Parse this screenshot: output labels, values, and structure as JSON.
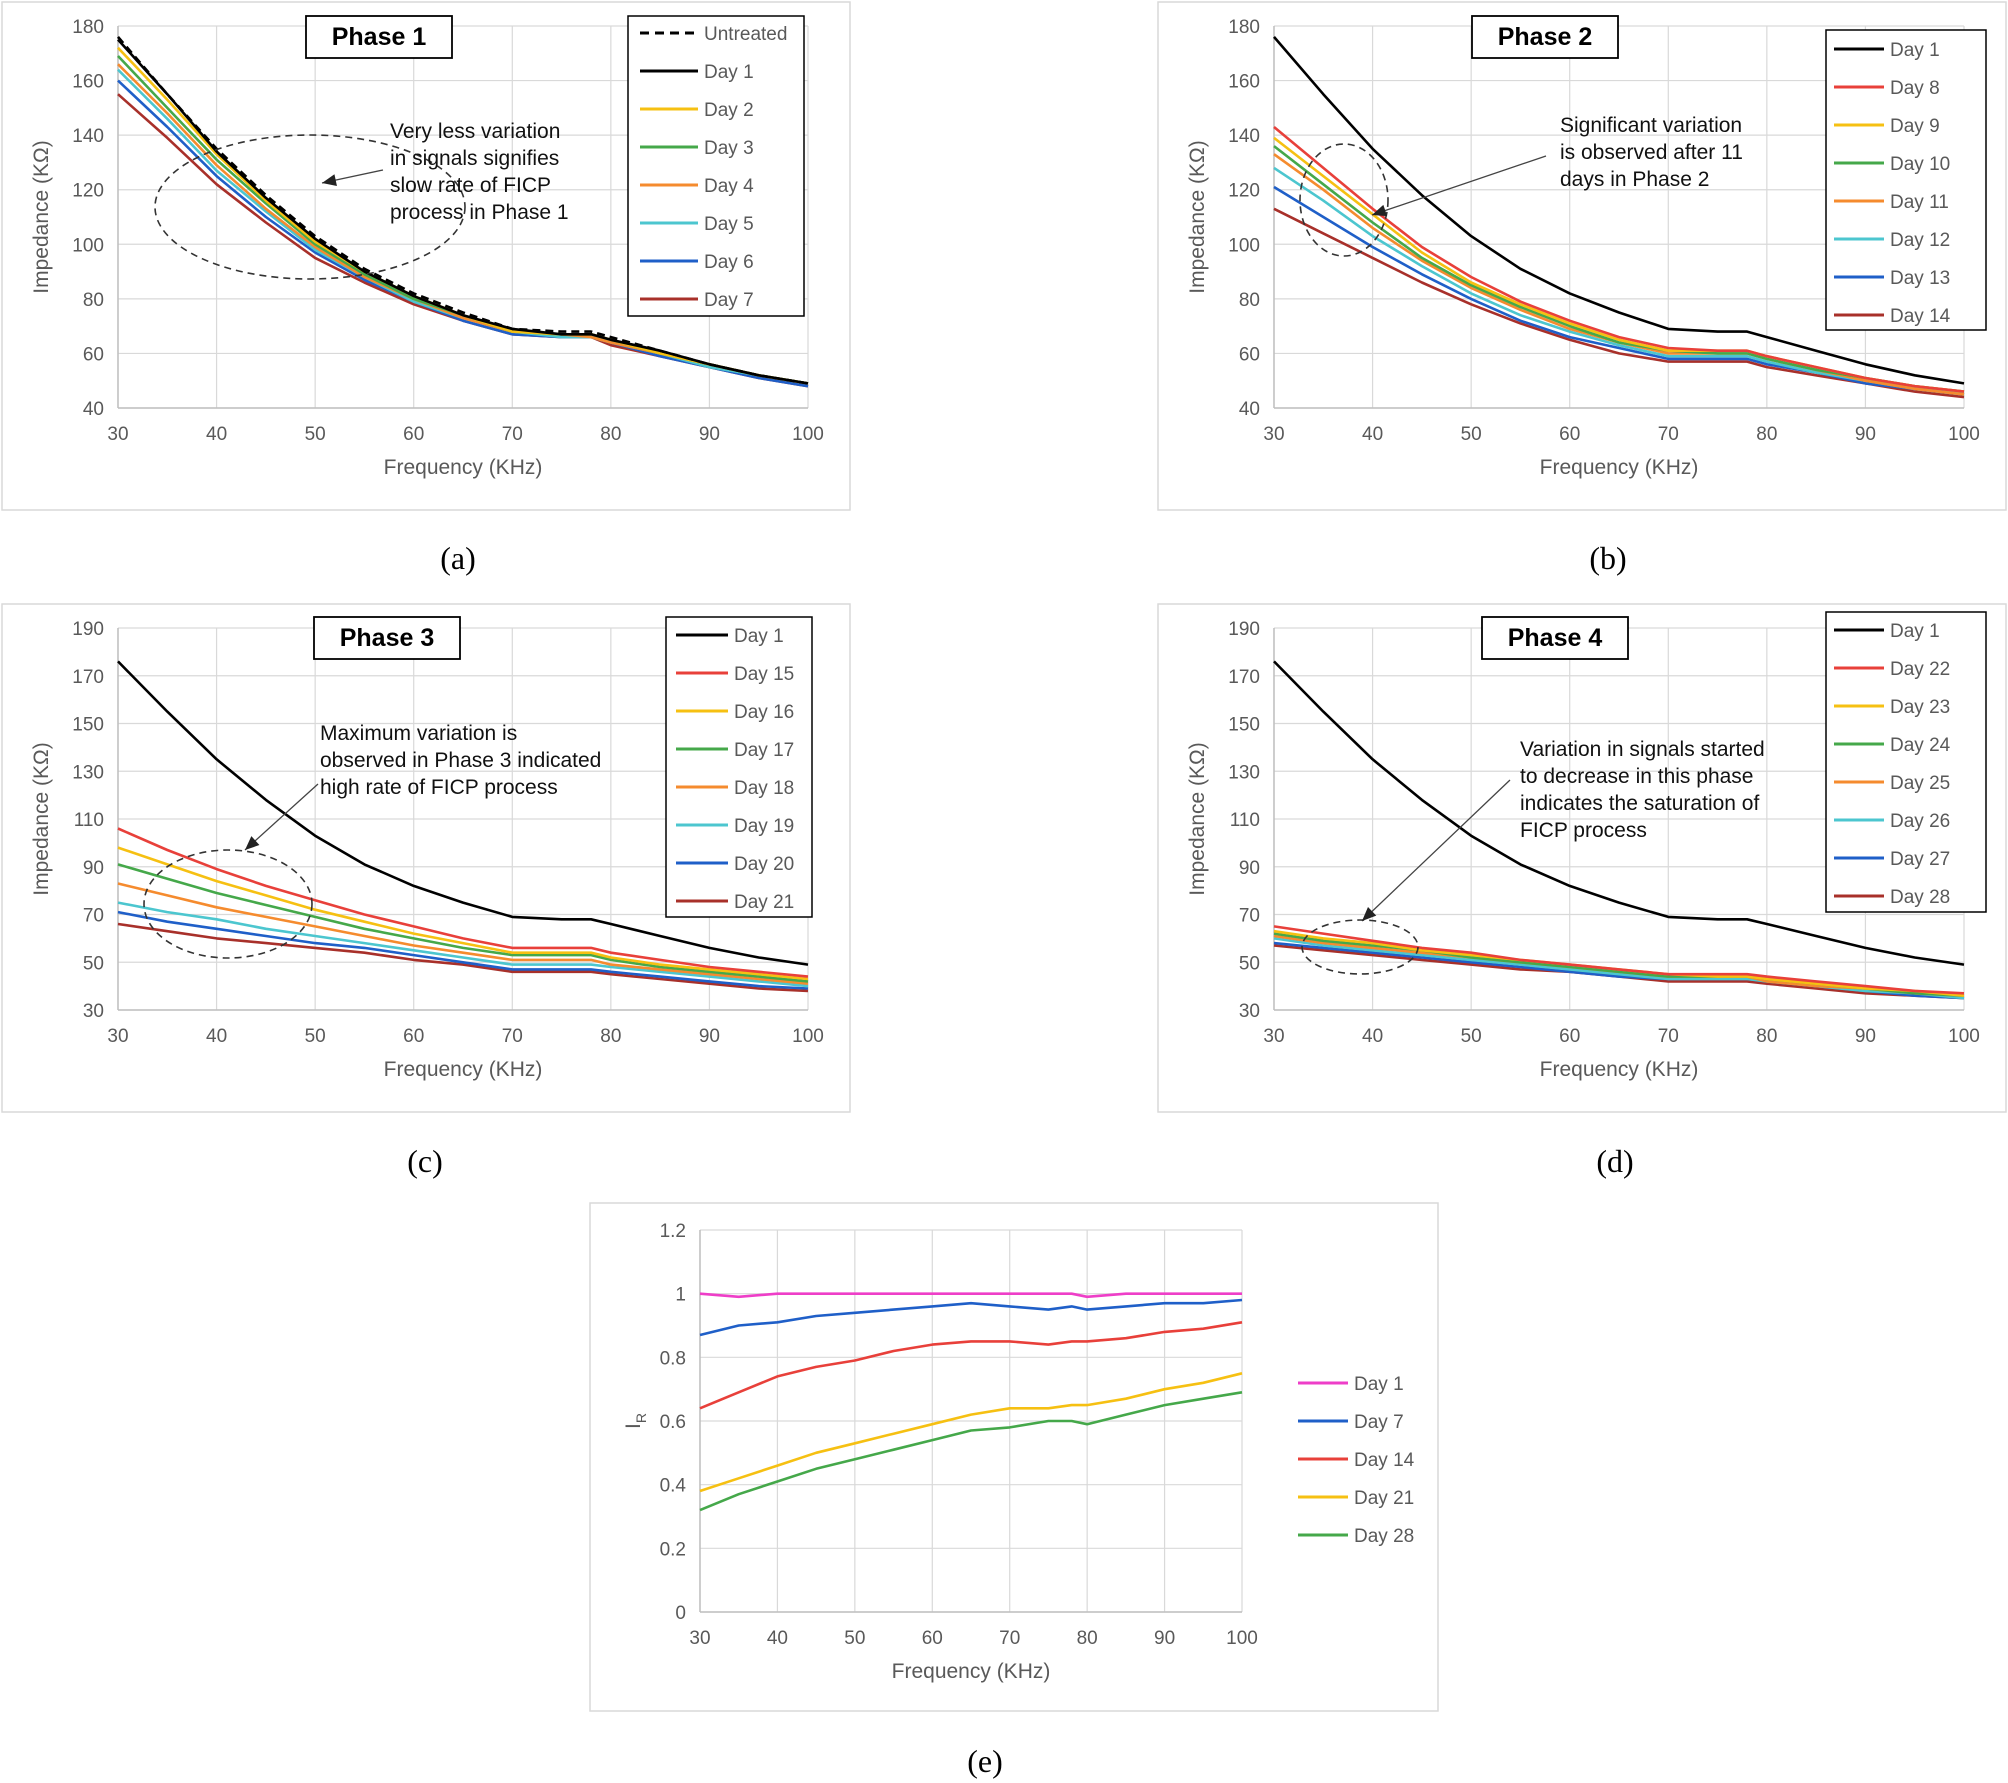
{
  "x_axis_label": "Frequency (KHz)",
  "impedance_axis_label": "Impedance (KΩ)",
  "ir_axis_label": "I",
  "ir_axis_subscript": "R",
  "captions": [
    "(a)",
    "(b)",
    "(c)",
    "(d)",
    "(e)"
  ],
  "colors": {
    "untreated": "#000000",
    "black": "#000000",
    "red": "#e8403a",
    "yellow": "#f6c012",
    "green": "#45a84a",
    "orange": "#f58b2e",
    "cyan": "#4cc6cf",
    "blue": "#1f5fc8",
    "darkred": "#a8302a",
    "magenta": "#ee3ec8",
    "gridline": "#d9d9d9",
    "axis_text": "#595959"
  },
  "chart_data": [
    {
      "type": "line",
      "phase_label": "Phase 1",
      "xlabel": "Frequency (KHz)",
      "ylabel": "Impedance (KΩ)",
      "xlim": [
        30,
        100
      ],
      "ylim": [
        40,
        180
      ],
      "x_ticks": [
        30,
        40,
        50,
        60,
        70,
        80,
        90,
        100
      ],
      "y_ticks": [
        40,
        60,
        80,
        100,
        120,
        140,
        160,
        180
      ],
      "legend_position": "top-right",
      "annotation": [
        "Very less variation",
        "in signals signifies",
        "slow rate of FICP",
        "process in Phase 1"
      ],
      "x": [
        30,
        35,
        40,
        45,
        50,
        55,
        60,
        65,
        70,
        75,
        78,
        80,
        85,
        90,
        95,
        100
      ],
      "series": [
        {
          "name": "Untreated",
          "color_key": "untreated",
          "dashed": true,
          "values": [
            176,
            155,
            135,
            118,
            103,
            91,
            82,
            75,
            69,
            68,
            68,
            66,
            61,
            56,
            52,
            49
          ]
        },
        {
          "name": "Day 1",
          "color_key": "black",
          "values": [
            175,
            155,
            134,
            117,
            102,
            90,
            81,
            74,
            69,
            67,
            67,
            65,
            61,
            56,
            52,
            49
          ]
        },
        {
          "name": "Day 2",
          "color_key": "yellow",
          "values": [
            172,
            153,
            133,
            116,
            101,
            90,
            81,
            74,
            68,
            67,
            67,
            65,
            60,
            56,
            52,
            49
          ]
        },
        {
          "name": "Day 3",
          "color_key": "green",
          "values": [
            169,
            150,
            131,
            115,
            100,
            89,
            80,
            74,
            68,
            67,
            67,
            65,
            60,
            56,
            52,
            49
          ]
        },
        {
          "name": "Day 4",
          "color_key": "orange",
          "values": [
            166,
            148,
            129,
            113,
            99,
            88,
            80,
            73,
            68,
            67,
            66,
            64,
            60,
            56,
            52,
            49
          ]
        },
        {
          "name": "Day 5",
          "color_key": "cyan",
          "values": [
            164,
            146,
            127,
            112,
            98,
            88,
            79,
            73,
            68,
            66,
            66,
            64,
            60,
            55,
            52,
            49
          ]
        },
        {
          "name": "Day 6",
          "color_key": "blue",
          "values": [
            160,
            143,
            125,
            110,
            97,
            87,
            79,
            72,
            67,
            66,
            66,
            64,
            59,
            55,
            51,
            48
          ]
        },
        {
          "name": "Day 7",
          "color_key": "darkred",
          "values": [
            155,
            139,
            122,
            108,
            95,
            86,
            78,
            72,
            67,
            66,
            66,
            63,
            59,
            55,
            51,
            48
          ]
        }
      ]
    },
    {
      "type": "line",
      "phase_label": "Phase 2",
      "xlabel": "Frequency (KHz)",
      "ylabel": "Impedance (KΩ)",
      "xlim": [
        30,
        100
      ],
      "ylim": [
        40,
        180
      ],
      "x_ticks": [
        30,
        40,
        50,
        60,
        70,
        80,
        90,
        100
      ],
      "y_ticks": [
        40,
        60,
        80,
        100,
        120,
        140,
        160,
        180
      ],
      "legend_position": "top-right",
      "annotation": [
        "Significant variation",
        "is observed after 11",
        "days in Phase 2"
      ],
      "x": [
        30,
        35,
        40,
        45,
        50,
        55,
        60,
        65,
        70,
        75,
        78,
        80,
        85,
        90,
        95,
        100
      ],
      "series": [
        {
          "name": "Day 1",
          "color_key": "black",
          "values": [
            176,
            155,
            135,
            118,
            103,
            91,
            82,
            75,
            69,
            68,
            68,
            66,
            61,
            56,
            52,
            49
          ]
        },
        {
          "name": "Day 8",
          "color_key": "red",
          "values": [
            143,
            128,
            113,
            99,
            88,
            79,
            72,
            66,
            62,
            61,
            61,
            59,
            55,
            51,
            48,
            46
          ]
        },
        {
          "name": "Day 9",
          "color_key": "yellow",
          "values": [
            139,
            125,
            111,
            97,
            86,
            78,
            71,
            65,
            61,
            61,
            61,
            59,
            55,
            51,
            48,
            46
          ]
        },
        {
          "name": "Day 10",
          "color_key": "green",
          "values": [
            136,
            122,
            108,
            95,
            85,
            77,
            70,
            64,
            61,
            60,
            60,
            58,
            54,
            51,
            48,
            46
          ]
        },
        {
          "name": "Day 11",
          "color_key": "orange",
          "values": [
            133,
            120,
            106,
            94,
            84,
            76,
            69,
            64,
            60,
            60,
            60,
            58,
            54,
            50,
            47,
            45
          ]
        },
        {
          "name": "Day 12",
          "color_key": "cyan",
          "values": [
            128,
            116,
            103,
            92,
            82,
            74,
            68,
            63,
            59,
            59,
            59,
            57,
            53,
            50,
            47,
            45
          ]
        },
        {
          "name": "Day 13",
          "color_key": "blue",
          "values": [
            121,
            110,
            99,
            89,
            80,
            72,
            66,
            62,
            58,
            58,
            58,
            56,
            53,
            49,
            47,
            45
          ]
        },
        {
          "name": "Day 14",
          "color_key": "darkred",
          "values": [
            113,
            104,
            95,
            86,
            78,
            71,
            65,
            60,
            57,
            57,
            57,
            55,
            52,
            49,
            46,
            44
          ]
        }
      ]
    },
    {
      "type": "line",
      "phase_label": "Phase 3",
      "xlabel": "Frequency (KHz)",
      "ylabel": "Impedance (KΩ)",
      "xlim": [
        30,
        100
      ],
      "ylim": [
        30,
        190
      ],
      "x_ticks": [
        30,
        40,
        50,
        60,
        70,
        80,
        90,
        100
      ],
      "y_ticks": [
        30,
        50,
        70,
        90,
        110,
        130,
        150,
        170,
        190
      ],
      "legend_position": "top-right",
      "annotation": [
        "Maximum  variation is",
        "observed in Phase 3 indicated",
        "high rate of FICP process"
      ],
      "x": [
        30,
        35,
        40,
        45,
        50,
        55,
        60,
        65,
        70,
        75,
        78,
        80,
        85,
        90,
        95,
        100
      ],
      "series": [
        {
          "name": "Day 1",
          "color_key": "black",
          "values": [
            176,
            155,
            135,
            118,
            103,
            91,
            82,
            75,
            69,
            68,
            68,
            66,
            61,
            56,
            52,
            49
          ]
        },
        {
          "name": "Day 15",
          "color_key": "red",
          "values": [
            106,
            97,
            89,
            82,
            76,
            70,
            65,
            60,
            56,
            56,
            56,
            54,
            51,
            48,
            46,
            44
          ]
        },
        {
          "name": "Day 16",
          "color_key": "yellow",
          "values": [
            98,
            91,
            84,
            78,
            72,
            67,
            62,
            58,
            54,
            54,
            54,
            52,
            49,
            47,
            45,
            43
          ]
        },
        {
          "name": "Day 17",
          "color_key": "green",
          "values": [
            91,
            85,
            79,
            74,
            69,
            64,
            60,
            56,
            53,
            53,
            53,
            51,
            48,
            46,
            44,
            42
          ]
        },
        {
          "name": "Day 18",
          "color_key": "orange",
          "values": [
            83,
            78,
            73,
            69,
            65,
            61,
            57,
            54,
            51,
            51,
            51,
            49,
            47,
            45,
            43,
            41
          ]
        },
        {
          "name": "Day 19",
          "color_key": "cyan",
          "values": [
            75,
            71,
            68,
            64,
            61,
            58,
            55,
            52,
            49,
            49,
            49,
            48,
            46,
            44,
            42,
            40
          ]
        },
        {
          "name": "Day 20",
          "color_key": "blue",
          "values": [
            71,
            67,
            64,
            61,
            58,
            56,
            53,
            50,
            47,
            47,
            47,
            46,
            44,
            42,
            40,
            39
          ]
        },
        {
          "name": "Day 21",
          "color_key": "darkred",
          "values": [
            66,
            63,
            60,
            58,
            56,
            54,
            51,
            49,
            46,
            46,
            46,
            45,
            43,
            41,
            39,
            38
          ]
        }
      ]
    },
    {
      "type": "line",
      "phase_label": "Phase 4",
      "xlabel": "Frequency (KHz)",
      "ylabel": "Impedance (KΩ)",
      "xlim": [
        30,
        100
      ],
      "ylim": [
        30,
        190
      ],
      "x_ticks": [
        30,
        40,
        50,
        60,
        70,
        80,
        90,
        100
      ],
      "y_ticks": [
        30,
        50,
        70,
        90,
        110,
        130,
        150,
        170,
        190
      ],
      "legend_position": "top-right",
      "annotation": [
        "Variation in signals started",
        "to decrease in this phase",
        "indicates the saturation of",
        "FICP process"
      ],
      "x": [
        30,
        35,
        40,
        45,
        50,
        55,
        60,
        65,
        70,
        75,
        78,
        80,
        85,
        90,
        95,
        100
      ],
      "series": [
        {
          "name": "Day 1",
          "color_key": "black",
          "values": [
            176,
            155,
            135,
            118,
            103,
            91,
            82,
            75,
            69,
            68,
            68,
            66,
            61,
            56,
            52,
            49
          ]
        },
        {
          "name": "Day 22",
          "color_key": "red",
          "values": [
            65,
            62,
            59,
            56,
            54,
            51,
            49,
            47,
            45,
            45,
            45,
            44,
            42,
            40,
            38,
            37
          ]
        },
        {
          "name": "Day 23",
          "color_key": "yellow",
          "values": [
            63,
            60,
            58,
            55,
            53,
            51,
            49,
            47,
            45,
            44,
            44,
            43,
            41,
            39,
            38,
            36
          ]
        },
        {
          "name": "Day 24",
          "color_key": "green",
          "values": [
            62,
            59,
            57,
            55,
            52,
            50,
            48,
            46,
            44,
            44,
            44,
            43,
            41,
            39,
            37,
            36
          ]
        },
        {
          "name": "Day 25",
          "color_key": "orange",
          "values": [
            61,
            58,
            56,
            54,
            52,
            50,
            48,
            46,
            44,
            44,
            44,
            42,
            40,
            39,
            37,
            36
          ]
        },
        {
          "name": "Day 26",
          "color_key": "cyan",
          "values": [
            60,
            57,
            55,
            53,
            51,
            49,
            47,
            45,
            43,
            43,
            43,
            42,
            40,
            38,
            37,
            35
          ]
        },
        {
          "name": "Day 27",
          "color_key": "blue",
          "values": [
            58,
            56,
            54,
            52,
            50,
            48,
            46,
            44,
            43,
            43,
            43,
            42,
            40,
            38,
            36,
            35
          ]
        },
        {
          "name": "Day 28",
          "color_key": "darkred",
          "values": [
            57,
            55,
            53,
            51,
            49,
            47,
            46,
            44,
            42,
            42,
            42,
            41,
            39,
            37,
            36,
            35
          ]
        }
      ]
    },
    {
      "type": "line",
      "xlabel": "Frequency (KHz)",
      "ylabel": "IR",
      "xlim": [
        30,
        100
      ],
      "ylim": [
        0,
        1.2
      ],
      "x_ticks": [
        30,
        40,
        50,
        60,
        70,
        80,
        90,
        100
      ],
      "y_ticks": [
        0,
        0.2,
        0.4,
        0.6,
        0.8,
        1,
        1.2
      ],
      "y_tick_labels": [
        "0",
        "0.2",
        "0.4",
        "0.6",
        "0.8",
        "1",
        "1.2"
      ],
      "legend_position": "right",
      "x": [
        30,
        35,
        40,
        45,
        50,
        55,
        60,
        65,
        70,
        75,
        78,
        80,
        85,
        90,
        95,
        100
      ],
      "series": [
        {
          "name": "Day 1",
          "color_key": "magenta",
          "values": [
            1.0,
            0.99,
            1.0,
            1.0,
            1.0,
            1.0,
            1.0,
            1.0,
            1.0,
            1.0,
            1.0,
            0.99,
            1.0,
            1.0,
            1.0,
            1.0
          ]
        },
        {
          "name": "Day 7",
          "color_key": "blue",
          "values": [
            0.87,
            0.9,
            0.91,
            0.93,
            0.94,
            0.95,
            0.96,
            0.97,
            0.96,
            0.95,
            0.96,
            0.95,
            0.96,
            0.97,
            0.97,
            0.98
          ]
        },
        {
          "name": "Day 14",
          "color_key": "red",
          "values": [
            0.64,
            0.69,
            0.74,
            0.77,
            0.79,
            0.82,
            0.84,
            0.85,
            0.85,
            0.84,
            0.85,
            0.85,
            0.86,
            0.88,
            0.89,
            0.91
          ]
        },
        {
          "name": "Day 21",
          "color_key": "yellow",
          "values": [
            0.38,
            0.42,
            0.46,
            0.5,
            0.53,
            0.56,
            0.59,
            0.62,
            0.64,
            0.64,
            0.65,
            0.65,
            0.67,
            0.7,
            0.72,
            0.75
          ]
        },
        {
          "name": "Day 28",
          "color_key": "green",
          "values": [
            0.32,
            0.37,
            0.41,
            0.45,
            0.48,
            0.51,
            0.54,
            0.57,
            0.58,
            0.6,
            0.6,
            0.59,
            0.62,
            0.65,
            0.67,
            0.69
          ]
        }
      ]
    }
  ]
}
